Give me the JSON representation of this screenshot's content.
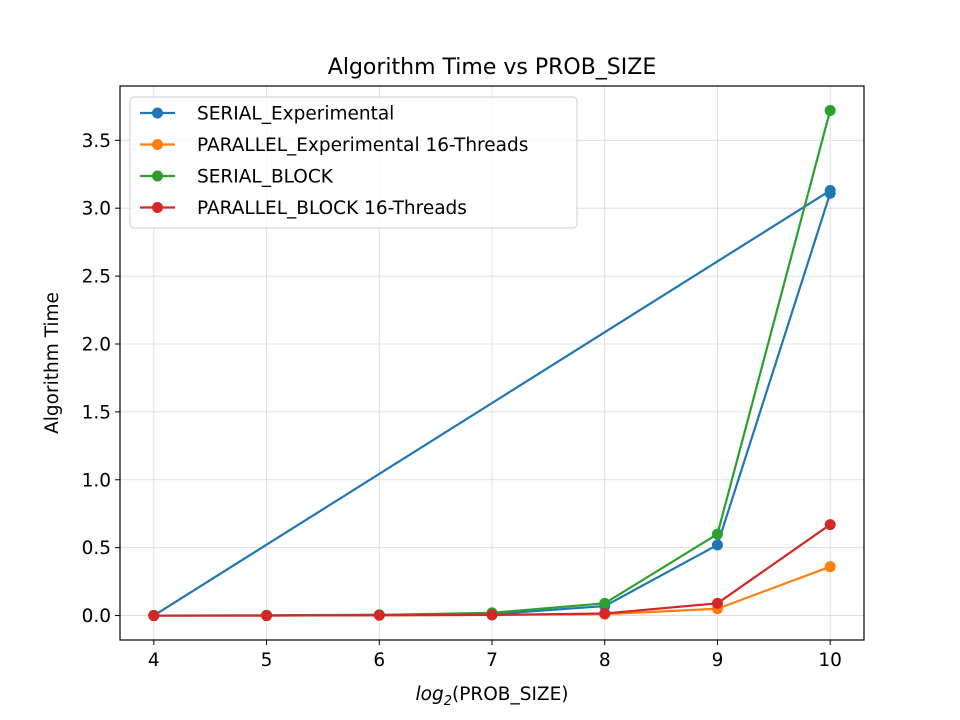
{
  "chart_data": {
    "type": "line",
    "title": "Algorithm Time vs PROB_SIZE",
    "xlabel_prefix": "log",
    "xlabel_sub": "2",
    "xlabel_suffix": "(PROB_SIZE)",
    "ylabel": "Algorithm Time",
    "xlim": [
      3.7,
      10.3
    ],
    "ylim": [
      -0.18,
      3.9
    ],
    "xticks": [
      4,
      5,
      6,
      7,
      8,
      9,
      10
    ],
    "xtick_labels": [
      "4",
      "5",
      "6",
      "7",
      "8",
      "9",
      "10"
    ],
    "yticks": [
      0.0,
      0.5,
      1.0,
      1.5,
      2.0,
      2.5,
      3.0,
      3.5
    ],
    "ytick_labels": [
      "0.0",
      "0.5",
      "1.0",
      "1.5",
      "2.0",
      "2.5",
      "3.0",
      "3.5"
    ],
    "grid": true,
    "legend_position": "upper-left",
    "series": [
      {
        "name": "SERIAL_Experimental",
        "color": "#1f77b4",
        "x": [
          4,
          10,
          4,
          5,
          6,
          7,
          8,
          9,
          10
        ],
        "y": [
          0.0,
          3.13,
          0.0,
          0.0,
          0.005,
          0.01,
          0.07,
          0.52,
          3.11
        ]
      },
      {
        "name": "PARALLEL_Experimental 16-Threads",
        "color": "#ff7f0e",
        "x": [
          4,
          5,
          6,
          7,
          8,
          9,
          10
        ],
        "y": [
          0.0,
          0.0,
          0.002,
          0.005,
          0.01,
          0.05,
          0.36
        ]
      },
      {
        "name": "SERIAL_BLOCK",
        "color": "#2ca02c",
        "x": [
          4,
          5,
          6,
          7,
          8,
          9,
          10
        ],
        "y": [
          0.0,
          0.002,
          0.005,
          0.02,
          0.09,
          0.6,
          3.72
        ]
      },
      {
        "name": "PARALLEL_BLOCK 16-Threads",
        "color": "#d62728",
        "x": [
          4,
          5,
          6,
          7,
          8,
          9,
          10
        ],
        "y": [
          0.0,
          0.0,
          0.002,
          0.005,
          0.015,
          0.09,
          0.67
        ]
      }
    ]
  }
}
